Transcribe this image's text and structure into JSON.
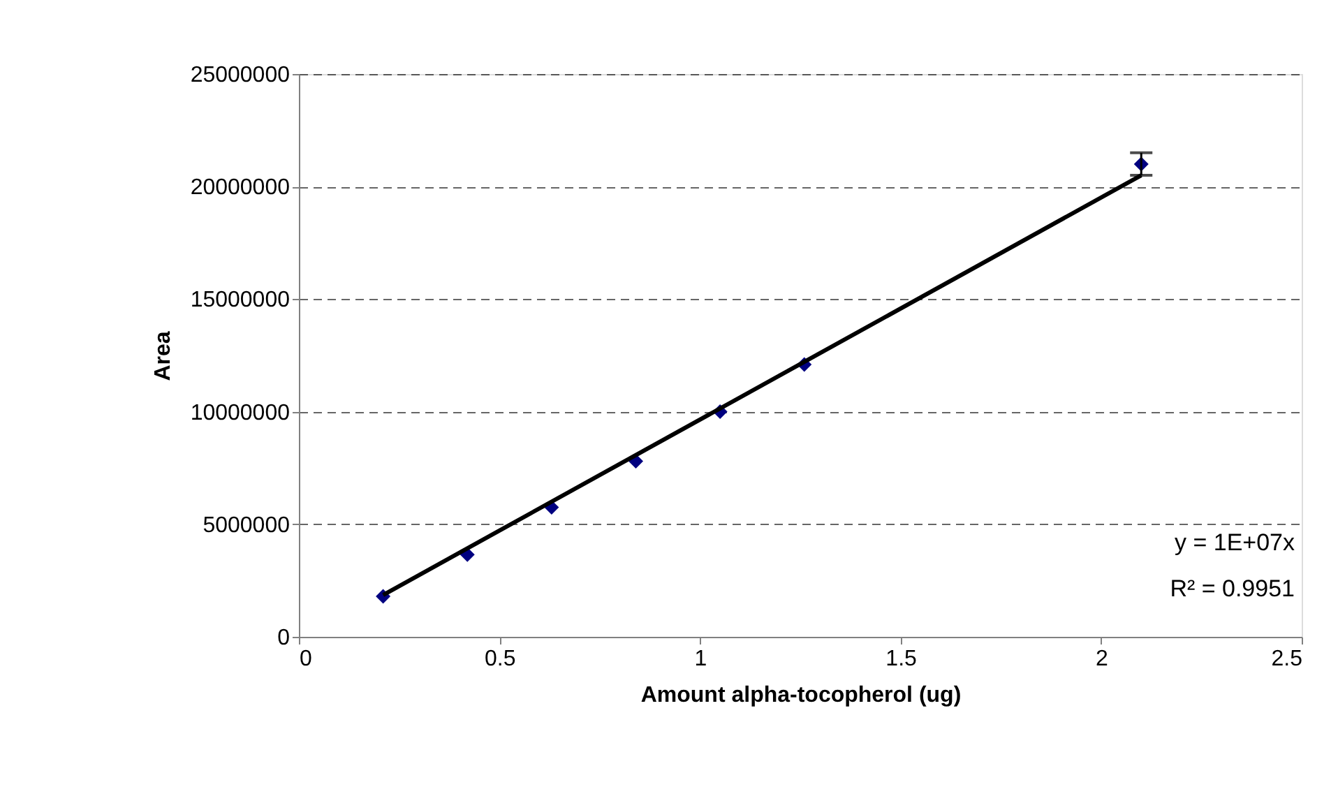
{
  "chart_data": {
    "type": "scatter",
    "xlabel": "Amount alpha-tocopherol (ug)",
    "ylabel": "Area",
    "x": [
      0.21,
      0.42,
      0.63,
      0.84,
      1.05,
      1.26,
      2.1
    ],
    "series": [
      {
        "color": "#000080",
        "values": [
          1800000,
          3650000,
          5750000,
          7800000,
          10000000,
          12100000,
          21000000
        ],
        "errors": [
          null,
          null,
          null,
          null,
          null,
          null,
          500000
        ],
        "marker": "diamond"
      },
      {
        "type": "line",
        "color": "#000000",
        "x": [
          0.21,
          2.1
        ],
        "values": [
          1860000,
          20500000
        ],
        "line_style": "solid",
        "marker": "none"
      }
    ],
    "xlim": [
      0,
      2.5
    ],
    "xticks": [
      0,
      0.5,
      1,
      1.5,
      2,
      2.5
    ],
    "ylim": [
      0,
      25000000
    ],
    "yticks": [
      0,
      5000000,
      10000000,
      15000000,
      20000000,
      25000000
    ],
    "grid": "y",
    "annotations": [
      "y = 1E+07x",
      "R² = 0.9951"
    ]
  }
}
